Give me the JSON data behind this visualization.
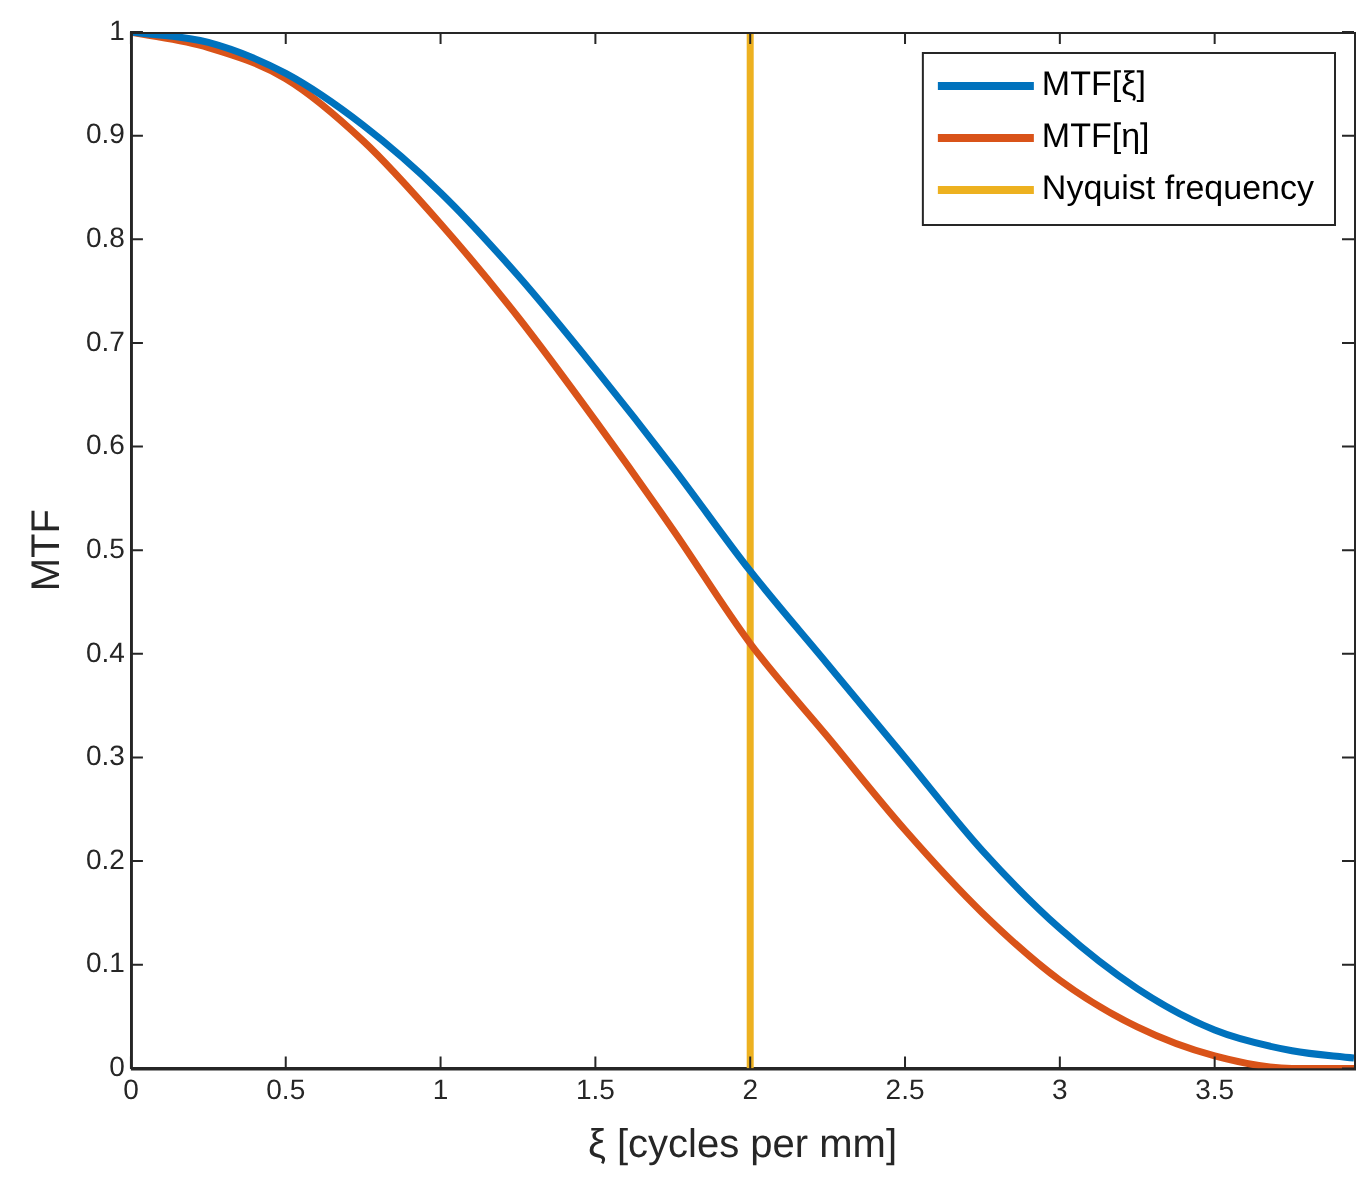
{
  "chart_data": {
    "type": "line",
    "xlabel": "ξ [cycles per mm]",
    "ylabel": "MTF",
    "xlim": [
      0,
      3.95
    ],
    "xticks": [
      0,
      0.5,
      1,
      1.5,
      2,
      2.5,
      3,
      3.5
    ],
    "ylim": [
      0,
      1
    ],
    "yticks": [
      0,
      0.1,
      0.2,
      0.3,
      0.4,
      0.5,
      0.6,
      0.7,
      0.8,
      0.9,
      1
    ],
    "grid": false,
    "legend": "top right",
    "marker": "none",
    "line_style": "solid",
    "series": [
      {
        "name": "MTF[ξ]",
        "color": "#0072bd",
        "x": [
          0,
          0.25,
          0.5,
          0.75,
          1,
          1.25,
          1.5,
          1.75,
          2,
          2.25,
          2.5,
          2.75,
          3,
          3.25,
          3.5,
          3.75,
          3.95
        ],
        "values": [
          1,
          0.99,
          0.96,
          0.91,
          0.845,
          0.765,
          0.675,
          0.58,
          0.48,
          0.39,
          0.3,
          0.21,
          0.135,
          0.077,
          0.037,
          0.017,
          0.01
        ]
      },
      {
        "name": "MTF[η]",
        "color": "#d95319",
        "x": [
          0,
          0.25,
          0.5,
          0.75,
          1,
          1.25,
          1.5,
          1.75,
          2,
          2.25,
          2.5,
          2.75,
          3,
          3.25,
          3.5,
          3.75,
          3.95
        ],
        "values": [
          1,
          0.985,
          0.955,
          0.895,
          0.815,
          0.725,
          0.625,
          0.52,
          0.41,
          0.32,
          0.23,
          0.15,
          0.085,
          0.04,
          0.012,
          0,
          0
        ]
      },
      {
        "name": "Nyquist frequency",
        "color": "#edb120",
        "x": [
          2,
          2
        ],
        "values": [
          0,
          1
        ]
      }
    ]
  }
}
